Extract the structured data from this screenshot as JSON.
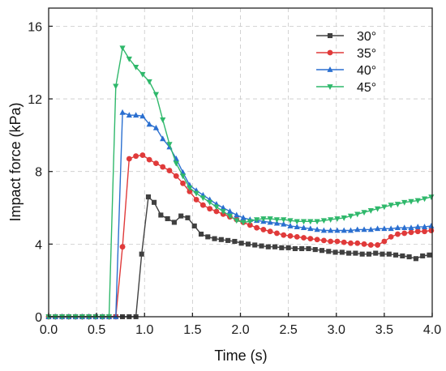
{
  "chart_data": {
    "type": "line",
    "title": "",
    "xlabel": "Time (s)",
    "ylabel": "Impact force (kPa)",
    "xlim": [
      0,
      4.0
    ],
    "ylim": [
      0,
      17
    ],
    "xticks": [
      0,
      0.5,
      1.0,
      1.5,
      2.0,
      2.5,
      3.0,
      3.5,
      4.0
    ],
    "xtick_labels": [
      "0.0",
      "0.5",
      "1.0",
      "1.5",
      "2.0",
      "2.5",
      "3.0",
      "3.5",
      "4.0"
    ],
    "yticks": [
      0,
      4,
      8,
      12,
      16
    ],
    "ytick_labels": [
      "0",
      "4",
      "8",
      "12",
      "16"
    ],
    "grid": true,
    "legend_position": "top-right",
    "series": [
      {
        "name": "30°",
        "color": "#404040",
        "marker": "square",
        "points": [
          [
            0,
            0
          ],
          [
            0.07,
            0
          ],
          [
            0.14,
            0
          ],
          [
            0.21,
            0
          ],
          [
            0.28,
            0
          ],
          [
            0.35,
            0
          ],
          [
            0.42,
            0
          ],
          [
            0.49,
            0
          ],
          [
            0.56,
            0
          ],
          [
            0.63,
            0
          ],
          [
            0.7,
            0
          ],
          [
            0.77,
            0
          ],
          [
            0.84,
            0
          ],
          [
            0.91,
            0
          ],
          [
            0.97,
            3.45
          ],
          [
            1.04,
            6.6
          ],
          [
            1.1,
            6.3
          ],
          [
            1.17,
            5.6
          ],
          [
            1.24,
            5.4
          ],
          [
            1.31,
            5.2
          ],
          [
            1.38,
            5.55
          ],
          [
            1.45,
            5.45
          ],
          [
            1.52,
            5.0
          ],
          [
            1.59,
            4.55
          ],
          [
            1.66,
            4.4
          ],
          [
            1.73,
            4.3
          ],
          [
            1.8,
            4.25
          ],
          [
            1.87,
            4.2
          ],
          [
            1.94,
            4.15
          ],
          [
            2.01,
            4.05
          ],
          [
            2.08,
            4.0
          ],
          [
            2.15,
            3.95
          ],
          [
            2.22,
            3.9
          ],
          [
            2.29,
            3.85
          ],
          [
            2.36,
            3.85
          ],
          [
            2.43,
            3.8
          ],
          [
            2.5,
            3.8
          ],
          [
            2.57,
            3.75
          ],
          [
            2.64,
            3.75
          ],
          [
            2.71,
            3.75
          ],
          [
            2.78,
            3.7
          ],
          [
            2.85,
            3.65
          ],
          [
            2.92,
            3.6
          ],
          [
            2.99,
            3.55
          ],
          [
            3.06,
            3.55
          ],
          [
            3.13,
            3.5
          ],
          [
            3.2,
            3.5
          ],
          [
            3.27,
            3.45
          ],
          [
            3.34,
            3.45
          ],
          [
            3.41,
            3.5
          ],
          [
            3.48,
            3.45
          ],
          [
            3.55,
            3.45
          ],
          [
            3.62,
            3.4
          ],
          [
            3.69,
            3.35
          ],
          [
            3.76,
            3.3
          ],
          [
            3.83,
            3.2
          ],
          [
            3.9,
            3.35
          ],
          [
            3.97,
            3.4
          ]
        ]
      },
      {
        "name": "35°",
        "color": "#e03a3a",
        "marker": "circle",
        "points": [
          [
            0,
            0
          ],
          [
            0.07,
            0
          ],
          [
            0.14,
            0
          ],
          [
            0.21,
            0
          ],
          [
            0.28,
            0
          ],
          [
            0.35,
            0
          ],
          [
            0.42,
            0
          ],
          [
            0.49,
            0
          ],
          [
            0.56,
            0
          ],
          [
            0.63,
            0
          ],
          [
            0.7,
            0
          ],
          [
            0.77,
            3.85
          ],
          [
            0.84,
            8.7
          ],
          [
            0.91,
            8.85
          ],
          [
            0.98,
            8.9
          ],
          [
            1.05,
            8.65
          ],
          [
            1.12,
            8.45
          ],
          [
            1.19,
            8.25
          ],
          [
            1.26,
            8.05
          ],
          [
            1.33,
            7.75
          ],
          [
            1.4,
            7.35
          ],
          [
            1.47,
            6.9
          ],
          [
            1.54,
            6.45
          ],
          [
            1.61,
            6.15
          ],
          [
            1.68,
            5.95
          ],
          [
            1.75,
            5.8
          ],
          [
            1.82,
            5.65
          ],
          [
            1.89,
            5.5
          ],
          [
            1.96,
            5.35
          ],
          [
            2.03,
            5.2
          ],
          [
            2.1,
            5.05
          ],
          [
            2.17,
            4.9
          ],
          [
            2.24,
            4.8
          ],
          [
            2.31,
            4.7
          ],
          [
            2.38,
            4.6
          ],
          [
            2.45,
            4.5
          ],
          [
            2.52,
            4.45
          ],
          [
            2.59,
            4.4
          ],
          [
            2.66,
            4.35
          ],
          [
            2.73,
            4.3
          ],
          [
            2.8,
            4.25
          ],
          [
            2.87,
            4.2
          ],
          [
            2.94,
            4.15
          ],
          [
            3.01,
            4.15
          ],
          [
            3.08,
            4.1
          ],
          [
            3.15,
            4.05
          ],
          [
            3.22,
            4.05
          ],
          [
            3.29,
            4.0
          ],
          [
            3.36,
            3.95
          ],
          [
            3.43,
            3.95
          ],
          [
            3.5,
            4.15
          ],
          [
            3.57,
            4.4
          ],
          [
            3.64,
            4.55
          ],
          [
            3.71,
            4.6
          ],
          [
            3.78,
            4.65
          ],
          [
            3.85,
            4.7
          ],
          [
            3.92,
            4.7
          ],
          [
            3.99,
            4.75
          ]
        ]
      },
      {
        "name": "40°",
        "color": "#2a6fd0",
        "marker": "triangle-up",
        "points": [
          [
            0,
            0
          ],
          [
            0.07,
            0
          ],
          [
            0.14,
            0
          ],
          [
            0.21,
            0
          ],
          [
            0.28,
            0
          ],
          [
            0.35,
            0
          ],
          [
            0.42,
            0
          ],
          [
            0.49,
            0
          ],
          [
            0.56,
            0
          ],
          [
            0.63,
            0
          ],
          [
            0.7,
            0
          ],
          [
            0.77,
            11.25
          ],
          [
            0.84,
            11.1
          ],
          [
            0.91,
            11.1
          ],
          [
            0.98,
            11.05
          ],
          [
            1.05,
            10.6
          ],
          [
            1.12,
            10.4
          ],
          [
            1.19,
            9.8
          ],
          [
            1.26,
            9.35
          ],
          [
            1.33,
            8.7
          ],
          [
            1.4,
            7.95
          ],
          [
            1.47,
            7.25
          ],
          [
            1.54,
            6.95
          ],
          [
            1.61,
            6.7
          ],
          [
            1.68,
            6.45
          ],
          [
            1.75,
            6.2
          ],
          [
            1.82,
            6.0
          ],
          [
            1.89,
            5.8
          ],
          [
            1.96,
            5.6
          ],
          [
            2.03,
            5.45
          ],
          [
            2.1,
            5.35
          ],
          [
            2.17,
            5.3
          ],
          [
            2.24,
            5.25
          ],
          [
            2.31,
            5.2
          ],
          [
            2.38,
            5.15
          ],
          [
            2.45,
            5.1
          ],
          [
            2.52,
            5.0
          ],
          [
            2.59,
            4.95
          ],
          [
            2.66,
            4.9
          ],
          [
            2.73,
            4.85
          ],
          [
            2.8,
            4.8
          ],
          [
            2.87,
            4.75
          ],
          [
            2.94,
            4.75
          ],
          [
            3.01,
            4.75
          ],
          [
            3.08,
            4.75
          ],
          [
            3.15,
            4.75
          ],
          [
            3.22,
            4.8
          ],
          [
            3.29,
            4.8
          ],
          [
            3.36,
            4.8
          ],
          [
            3.43,
            4.85
          ],
          [
            3.5,
            4.85
          ],
          [
            3.57,
            4.85
          ],
          [
            3.64,
            4.9
          ],
          [
            3.71,
            4.9
          ],
          [
            3.78,
            4.9
          ],
          [
            3.85,
            4.95
          ],
          [
            3.92,
            4.95
          ],
          [
            3.99,
            5.0
          ]
        ]
      },
      {
        "name": "45°",
        "color": "#2fb86b",
        "marker": "triangle-down",
        "points": [
          [
            0,
            0
          ],
          [
            0.07,
            0
          ],
          [
            0.14,
            0
          ],
          [
            0.21,
            0
          ],
          [
            0.28,
            0
          ],
          [
            0.35,
            0
          ],
          [
            0.42,
            0
          ],
          [
            0.49,
            0
          ],
          [
            0.56,
            0
          ],
          [
            0.63,
            0
          ],
          [
            0.7,
            12.7
          ],
          [
            0.77,
            14.8
          ],
          [
            0.84,
            14.2
          ],
          [
            0.91,
            13.75
          ],
          [
            0.98,
            13.35
          ],
          [
            1.05,
            12.95
          ],
          [
            1.12,
            12.25
          ],
          [
            1.19,
            10.85
          ],
          [
            1.26,
            9.5
          ],
          [
            1.33,
            8.45
          ],
          [
            1.4,
            7.75
          ],
          [
            1.47,
            7.1
          ],
          [
            1.54,
            6.8
          ],
          [
            1.61,
            6.55
          ],
          [
            1.68,
            6.3
          ],
          [
            1.75,
            6.05
          ],
          [
            1.82,
            5.8
          ],
          [
            1.89,
            5.55
          ],
          [
            1.96,
            5.3
          ],
          [
            2.03,
            5.2
          ],
          [
            2.1,
            5.25
          ],
          [
            2.17,
            5.35
          ],
          [
            2.24,
            5.4
          ],
          [
            2.31,
            5.4
          ],
          [
            2.38,
            5.35
          ],
          [
            2.45,
            5.35
          ],
          [
            2.52,
            5.3
          ],
          [
            2.59,
            5.25
          ],
          [
            2.66,
            5.25
          ],
          [
            2.73,
            5.25
          ],
          [
            2.8,
            5.25
          ],
          [
            2.87,
            5.3
          ],
          [
            2.94,
            5.35
          ],
          [
            3.01,
            5.4
          ],
          [
            3.08,
            5.45
          ],
          [
            3.15,
            5.55
          ],
          [
            3.22,
            5.65
          ],
          [
            3.29,
            5.75
          ],
          [
            3.36,
            5.85
          ],
          [
            3.43,
            5.95
          ],
          [
            3.5,
            6.05
          ],
          [
            3.57,
            6.15
          ],
          [
            3.64,
            6.2
          ],
          [
            3.71,
            6.3
          ],
          [
            3.78,
            6.35
          ],
          [
            3.85,
            6.4
          ],
          [
            3.92,
            6.5
          ],
          [
            3.99,
            6.6
          ]
        ]
      }
    ]
  }
}
